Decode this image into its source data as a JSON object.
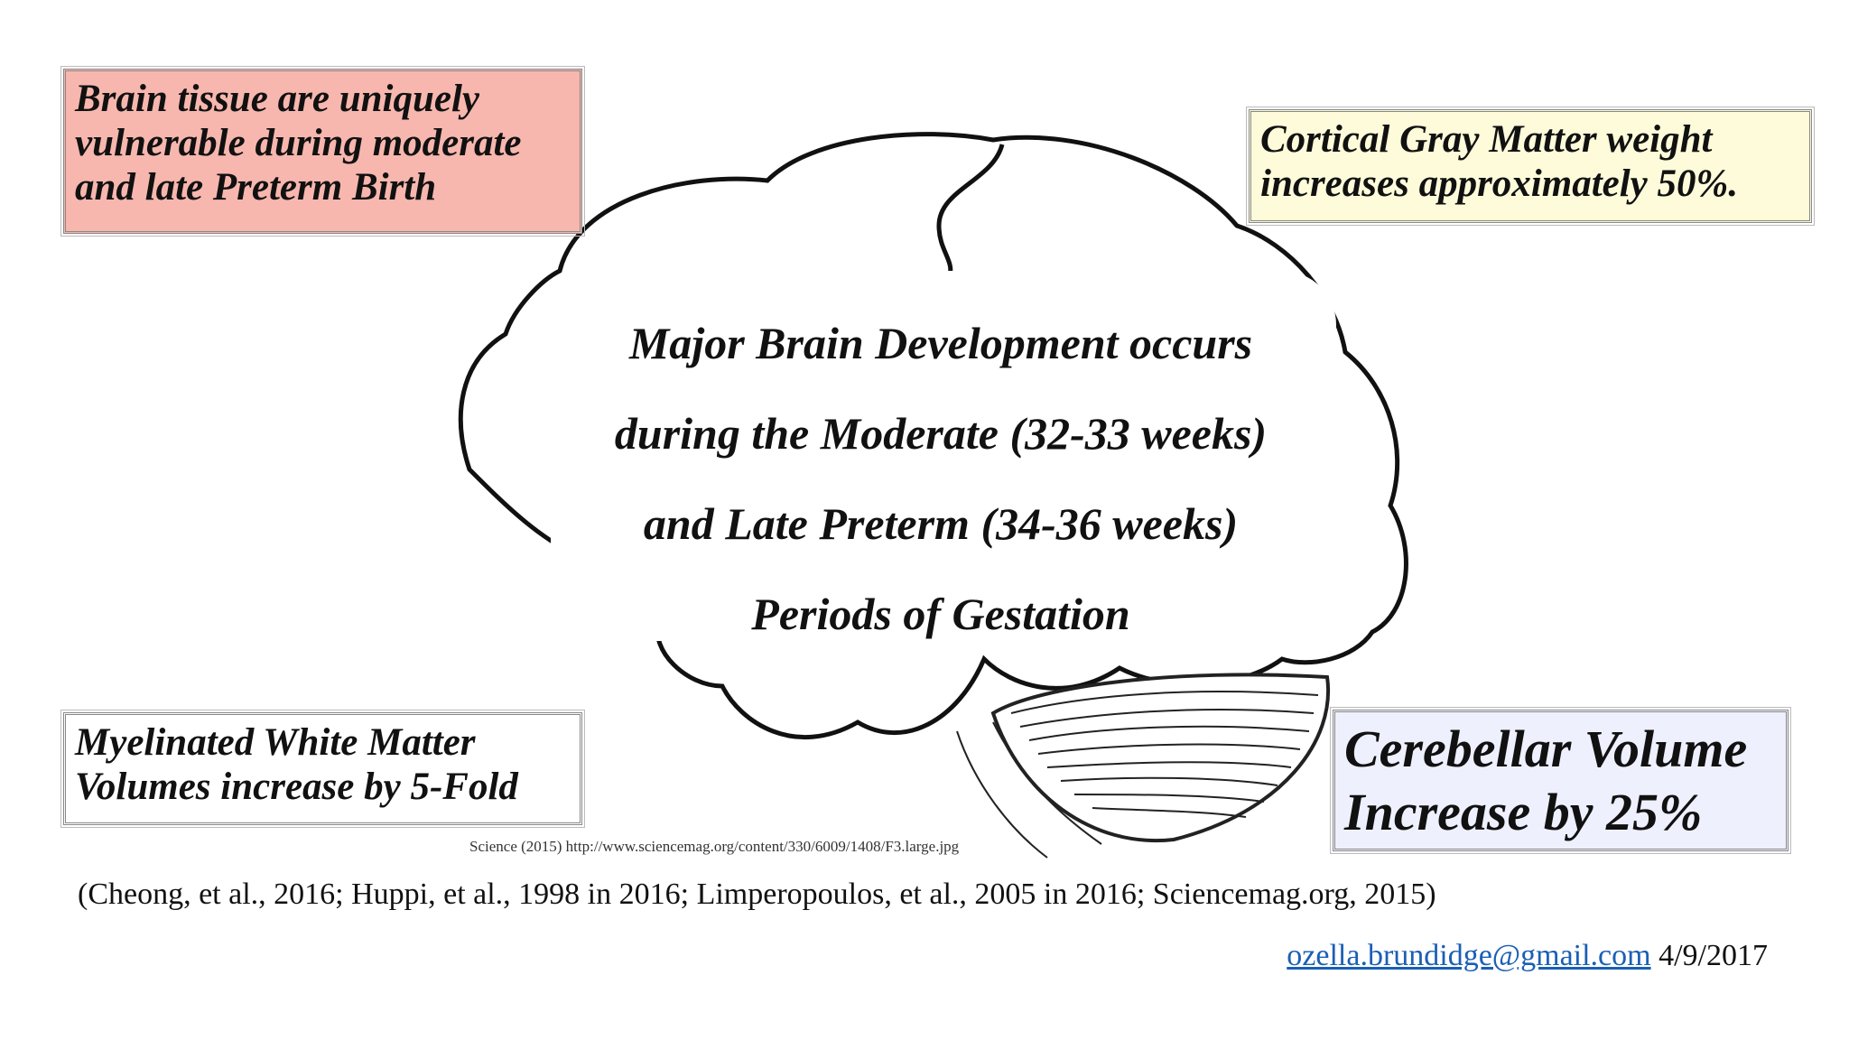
{
  "boxes": {
    "top_left": [
      "Brain tissue are uniquely",
      "vulnerable during moderate",
      "and late Preterm Birth"
    ],
    "top_right": [
      "Cortical Gray Matter weight",
      "increases approximately 50%."
    ],
    "bottom_left": [
      "Myelinated White Matter",
      "Volumes increase by 5-Fold"
    ],
    "bottom_right": [
      "Cerebellar Volume",
      "Increase by 25%"
    ]
  },
  "center_text": [
    "Major Brain Development occurs",
    "during the Moderate (32-33 weeks)",
    "and Late Preterm (34-36 weeks)",
    "Periods of Gestation"
  ],
  "image_credit": "Science (2015) http://www.sciencemag.org/content/330/6009/1408/F3.large.jpg",
  "citation": "(Cheong, et al., 2016; Huppi, et al., 1998 in 2016; Limperopoulos, et al., 2005 in 2016; Sciencemag.org, 2015)",
  "footer": {
    "email": "ozella.brundidge@gmail.com",
    "date": "4/9/2017"
  }
}
